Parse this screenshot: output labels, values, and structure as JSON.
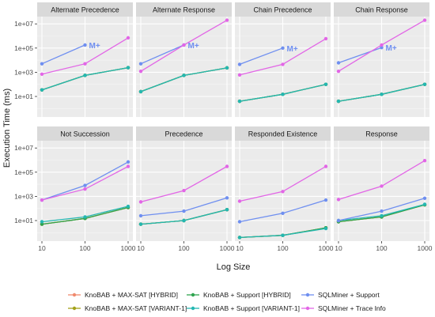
{
  "chart_data": {
    "type": "line",
    "layout": "facet-grid-2x4",
    "ylabel": "Execution Time (ms)",
    "xlabel": "Log Size",
    "x_ticks": [
      "10",
      "100",
      "1000"
    ],
    "x_values": [
      10,
      100,
      1000
    ],
    "y_scale": "log10",
    "y_ticks": [
      "1e+01",
      "1e+03",
      "1e+05",
      "1e+07"
    ],
    "y_range": [
      0.2,
      40000000
    ],
    "grid": true,
    "legend_placement": "bottom",
    "series": [
      {
        "key": "maxsat_hybrid",
        "name": "KnoBAB + MAX-SAT [HYBRID]",
        "color": "#f08a6e"
      },
      {
        "key": "maxsat_variant",
        "name": "KnoBAB + MAX-SAT [VARIANT-1]",
        "color": "#a3a21a"
      },
      {
        "key": "support_hybrid",
        "name": "KnoBAB + Support [HYBRID]",
        "color": "#2fa44f"
      },
      {
        "key": "support_variant",
        "name": "KnoBAB + Support [VARIANT-1]",
        "color": "#24b7b2"
      },
      {
        "key": "sqlminer_support",
        "name": "SQLMiner + Support",
        "color": "#6f8ff0"
      },
      {
        "key": "sqlminer_trace",
        "name": "SQLMiner + Trace Info",
        "color": "#e266e6"
      }
    ],
    "panels": [
      {
        "title": "Alternate Precedence",
        "lines": {
          "maxsat_hybrid": [
            35,
            550,
            2400
          ],
          "maxsat_variant": [
            35,
            550,
            2400
          ],
          "support_hybrid": [
            35,
            550,
            2400
          ],
          "support_variant": [
            35,
            550,
            2400
          ],
          "sqlminer_support": [
            5000,
            180000,
            null
          ],
          "sqlminer_trace": [
            700,
            5000,
            700000
          ]
        },
        "annotation": {
          "text": "M+",
          "x": 100,
          "y": 180000
        }
      },
      {
        "title": "Alternate Response",
        "lines": {
          "maxsat_hybrid": [
            25,
            550,
            2300
          ],
          "maxsat_variant": [
            25,
            550,
            2300
          ],
          "support_hybrid": [
            25,
            550,
            2300
          ],
          "support_variant": [
            25,
            550,
            2300
          ],
          "sqlminer_support": [
            5000,
            180000,
            null
          ],
          "sqlminer_trace": [
            1200,
            180000,
            20000000
          ]
        },
        "annotation": {
          "text": "M+",
          "x": 100,
          "y": 180000
        }
      },
      {
        "title": "Chain Precedence",
        "lines": {
          "maxsat_hybrid": [
            4,
            15,
            100
          ],
          "maxsat_variant": [
            4,
            15,
            100
          ],
          "support_hybrid": [
            4,
            15,
            100
          ],
          "support_variant": [
            4,
            15,
            100
          ],
          "sqlminer_support": [
            4500,
            100000,
            null
          ],
          "sqlminer_trace": [
            600,
            4500,
            600000
          ]
        },
        "annotation": {
          "text": "M+",
          "x": 100,
          "y": 100000
        }
      },
      {
        "title": "Chain Response",
        "lines": {
          "maxsat_hybrid": [
            4,
            15,
            100
          ],
          "maxsat_variant": [
            4,
            15,
            100
          ],
          "support_hybrid": [
            4,
            15,
            100
          ],
          "support_variant": [
            4,
            15,
            100
          ],
          "sqlminer_support": [
            6000,
            110000,
            null
          ],
          "sqlminer_trace": [
            1200,
            180000,
            20000000
          ]
        },
        "annotation": {
          "text": "M+",
          "x": 100,
          "y": 110000
        }
      },
      {
        "title": "Not Succession",
        "lines": {
          "maxsat_hybrid": [
            5,
            15,
            120
          ],
          "maxsat_variant": [
            5,
            15,
            120
          ],
          "support_hybrid": [
            5,
            15,
            120
          ],
          "support_variant": [
            8,
            20,
            150
          ],
          "sqlminer_support": [
            500,
            8000,
            700000
          ],
          "sqlminer_trace": [
            500,
            4000,
            300000
          ]
        },
        "annotation": null
      },
      {
        "title": "Precedence",
        "lines": {
          "maxsat_hybrid": [
            5,
            10,
            80
          ],
          "maxsat_variant": [
            5,
            10,
            80
          ],
          "support_hybrid": [
            5,
            10,
            80
          ],
          "support_variant": [
            5,
            10,
            80
          ],
          "sqlminer_support": [
            25,
            60,
            750
          ],
          "sqlminer_trace": [
            350,
            3000,
            300000
          ]
        },
        "annotation": null
      },
      {
        "title": "Responded Existence",
        "lines": {
          "maxsat_hybrid": [
            0.4,
            0.6,
            2.5
          ],
          "maxsat_variant": [
            0.4,
            0.6,
            2.5
          ],
          "support_hybrid": [
            0.4,
            0.6,
            2.5
          ],
          "support_variant": [
            0.4,
            0.6,
            2.2
          ],
          "sqlminer_support": [
            8,
            40,
            500
          ],
          "sqlminer_trace": [
            400,
            2500,
            300000
          ]
        },
        "annotation": null
      },
      {
        "title": "Response",
        "lines": {
          "maxsat_hybrid": [
            8,
            20,
            200
          ],
          "maxsat_variant": [
            8,
            20,
            200
          ],
          "support_hybrid": [
            8,
            20,
            200
          ],
          "support_variant": [
            10,
            25,
            220
          ],
          "sqlminer_support": [
            10,
            60,
            700
          ],
          "sqlminer_trace": [
            550,
            7000,
            900000
          ]
        },
        "annotation": null
      }
    ]
  }
}
